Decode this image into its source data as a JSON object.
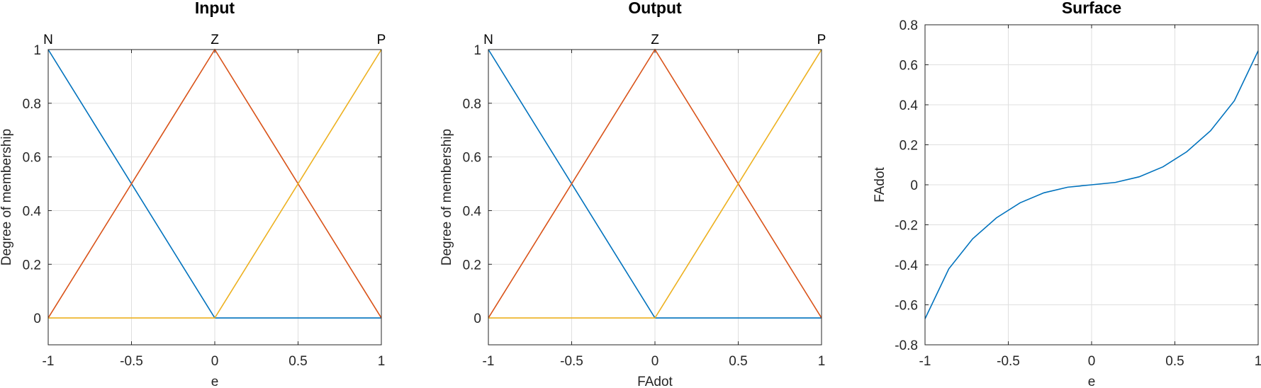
{
  "chart_data": [
    {
      "type": "line",
      "title": "Input",
      "xlabel": "e",
      "ylabel": "Degree of membership",
      "xlim": [
        -1,
        1
      ],
      "ylim": [
        -0.1,
        1
      ],
      "xticks": [
        -1,
        -0.5,
        0,
        0.5,
        1
      ],
      "xtick_labels": [
        "-1",
        "-0.5",
        "0",
        "0.5",
        "1"
      ],
      "yticks": [
        0,
        0.2,
        0.4,
        0.6,
        0.8,
        1
      ],
      "ytick_labels": [
        "0",
        "0.2",
        "0.4",
        "0.6",
        "0.8",
        "1"
      ],
      "grid": true,
      "mf_labels": [
        {
          "text": "N",
          "x": -1
        },
        {
          "text": "Z",
          "x": 0
        },
        {
          "text": "P",
          "x": 1
        }
      ],
      "series": [
        {
          "color": "#0072bd",
          "x": [
            -1,
            0,
            1
          ],
          "y": [
            1,
            0,
            0
          ]
        },
        {
          "color": "#d95319",
          "x": [
            -1,
            0,
            1
          ],
          "y": [
            0,
            1,
            0
          ]
        },
        {
          "color": "#edb120",
          "x": [
            -1,
            0,
            1
          ],
          "y": [
            0,
            0,
            1
          ]
        }
      ]
    },
    {
      "type": "line",
      "title": "Output",
      "xlabel": "FAdot",
      "ylabel": "Degree of membership",
      "xlim": [
        -1,
        1
      ],
      "ylim": [
        -0.1,
        1
      ],
      "xticks": [
        -1,
        -0.5,
        0,
        0.5,
        1
      ],
      "xtick_labels": [
        "-1",
        "-0.5",
        "0",
        "0.5",
        "1"
      ],
      "yticks": [
        0,
        0.2,
        0.4,
        0.6,
        0.8,
        1
      ],
      "ytick_labels": [
        "0",
        "0.2",
        "0.4",
        "0.6",
        "0.8",
        "1"
      ],
      "grid": true,
      "mf_labels": [
        {
          "text": "N",
          "x": -1
        },
        {
          "text": "Z",
          "x": 0
        },
        {
          "text": "P",
          "x": 1
        }
      ],
      "series": [
        {
          "color": "#0072bd",
          "x": [
            -1,
            0,
            1
          ],
          "y": [
            1,
            0,
            0
          ]
        },
        {
          "color": "#d95319",
          "x": [
            -1,
            0,
            1
          ],
          "y": [
            0,
            1,
            0
          ]
        },
        {
          "color": "#edb120",
          "x": [
            -1,
            0,
            1
          ],
          "y": [
            0,
            0,
            1
          ]
        }
      ]
    },
    {
      "type": "line",
      "title": "Surface",
      "xlabel": "e",
      "ylabel": "FAdot",
      "xlim": [
        -1,
        1
      ],
      "ylim": [
        -0.8,
        0.8
      ],
      "xticks": [
        -1,
        -0.5,
        0,
        0.5,
        1
      ],
      "xtick_labels": [
        "-1",
        "-0.5",
        "0",
        "0.5",
        "1"
      ],
      "yticks": [
        -0.8,
        -0.6,
        -0.4,
        -0.2,
        0,
        0.2,
        0.4,
        0.6,
        0.8
      ],
      "ytick_labels": [
        "-0.8",
        "-0.6",
        "-0.4",
        "-0.2",
        "0",
        "0.2",
        "0.4",
        "0.6",
        "0.8"
      ],
      "grid": true,
      "mf_labels": [],
      "series": [
        {
          "color": "#0072bd",
          "x": [
            -1,
            -0.857,
            -0.714,
            -0.571,
            -0.429,
            -0.286,
            -0.143,
            0,
            0.143,
            0.286,
            0.429,
            0.571,
            0.714,
            0.857,
            1
          ],
          "y": [
            -0.67,
            -0.42,
            -0.27,
            -0.165,
            -0.09,
            -0.04,
            -0.012,
            0,
            0.012,
            0.04,
            0.09,
            0.165,
            0.27,
            0.42,
            0.67
          ]
        }
      ]
    }
  ]
}
